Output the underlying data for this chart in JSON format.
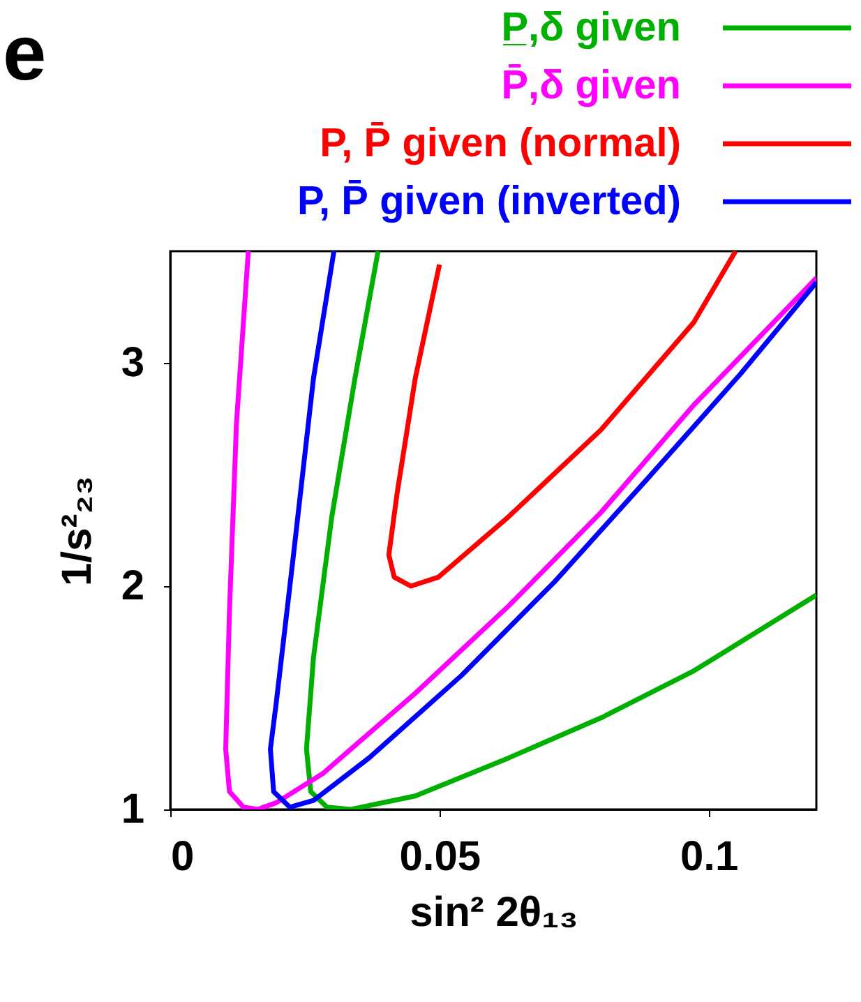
{
  "chart_data": {
    "type": "line",
    "xlabel": "sin² 2θ₁₃",
    "ylabel": "1/s²₂₃",
    "annotations": [
      "e"
    ],
    "xlim": [
      0,
      0.12
    ],
    "ylim": [
      1,
      3.5
    ],
    "xticks": [
      0,
      0.05,
      0.1
    ],
    "yticks": [
      1,
      2,
      3
    ],
    "grid": false,
    "legend": "top right",
    "marker": "none",
    "line_style": "solid",
    "series": [
      {
        "name": "P̲,δ given",
        "color": "#00b000",
        "x": [
          0.0386,
          0.0343,
          0.03,
          0.0266,
          0.0253,
          0.0261,
          0.0291,
          0.0335,
          0.0455,
          0.0628,
          0.08,
          0.0972,
          0.12
        ],
        "values": [
          3.5,
          2.93,
          2.31,
          1.68,
          1.27,
          1.08,
          1.01,
          1.0,
          1.06,
          1.23,
          1.41,
          1.62,
          1.96
        ]
      },
      {
        "name": "P̄,δ given",
        "color": "#ff00ff",
        "x": [
          0.0145,
          0.0123,
          0.011,
          0.0103,
          0.011,
          0.0136,
          0.0162,
          0.0197,
          0.0283,
          0.0455,
          0.0628,
          0.08,
          0.0972,
          0.12
        ],
        "values": [
          3.5,
          2.73,
          1.89,
          1.27,
          1.08,
          1.01,
          1.0,
          1.03,
          1.16,
          1.52,
          1.91,
          2.33,
          2.81,
          3.38
        ]
      },
      {
        "name": "P, P̄ given (normal)",
        "color": "#ff0000",
        "x": [
          0.05,
          0.0455,
          0.0421,
          0.0406,
          0.0416,
          0.0447,
          0.0498,
          0.0628,
          0.08,
          0.0972,
          0.105
        ],
        "values": [
          3.44,
          2.93,
          2.41,
          2.14,
          2.04,
          2.0,
          2.04,
          2.31,
          2.7,
          3.18,
          3.5
        ]
      },
      {
        "name": "P,  P̄ given (inverted)",
        "color": "#0000ff",
        "x": [
          0.0304,
          0.0266,
          0.0227,
          0.0197,
          0.0186,
          0.0192,
          0.0222,
          0.0266,
          0.0369,
          0.0541,
          0.0714,
          0.0886,
          0.1059,
          0.12
        ],
        "values": [
          3.5,
          2.93,
          2.1,
          1.48,
          1.27,
          1.08,
          1.01,
          1.04,
          1.23,
          1.6,
          2.02,
          2.48,
          2.95,
          3.36
        ]
      }
    ]
  }
}
